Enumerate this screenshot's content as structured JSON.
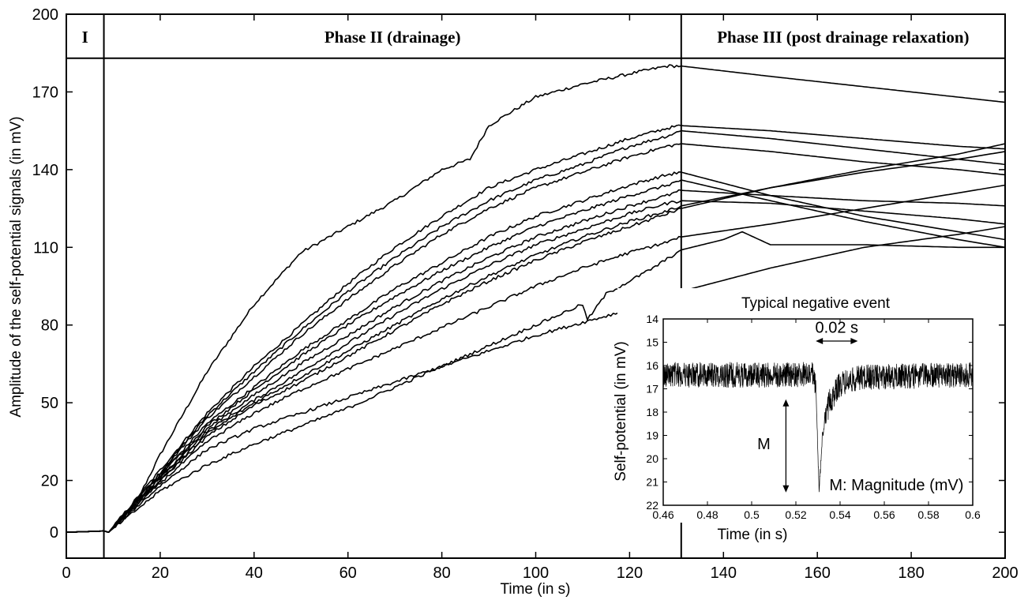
{
  "chart_data": [
    {
      "type": "line",
      "title": "",
      "xlabel": "Time (in s)",
      "ylabel": "Amplitude of the self-potential signals (in mV)",
      "xlim": [
        0,
        200
      ],
      "ylim": [
        -10,
        200
      ],
      "xticks": [
        0,
        20,
        40,
        60,
        80,
        100,
        120,
        140,
        160,
        180,
        200
      ],
      "yticks": [
        0,
        20,
        50,
        80,
        110,
        140,
        170,
        200
      ],
      "grid": false,
      "legend": "none",
      "phases": [
        {
          "label": "I",
          "start": 0,
          "end": 8
        },
        {
          "label": "Phase II (drainage)",
          "start": 8,
          "end": 131
        },
        {
          "label": "Phase III (post drainage relaxation)",
          "start": 131,
          "end": 200
        }
      ],
      "phase_line_values": {
        "x_boundaries": [
          8,
          131
        ],
        "y_band": 183
      },
      "series": [
        {
          "x": [
            0,
            8,
            9,
            15,
            20,
            30,
            40,
            50,
            60,
            70,
            80,
            86,
            90,
            100,
            110,
            120,
            128,
            131,
            150,
            170,
            190,
            200
          ],
          "values": [
            0,
            0.5,
            0,
            12,
            30,
            62,
            88,
            108,
            118,
            128,
            140,
            144,
            157,
            168,
            173,
            177,
            180,
            180,
            176,
            172,
            168,
            166
          ]
        },
        {
          "x": [
            0,
            8,
            9,
            20,
            30,
            40,
            50,
            60,
            70,
            80,
            90,
            100,
            110,
            120,
            128,
            131,
            150,
            170,
            190,
            200
          ],
          "values": [
            0,
            0.5,
            0,
            24,
            46,
            64,
            80,
            96,
            110,
            122,
            133,
            140,
            146,
            152,
            156,
            157,
            155,
            152,
            149,
            148
          ]
        },
        {
          "x": [
            0,
            8,
            9,
            20,
            30,
            40,
            50,
            60,
            70,
            80,
            90,
            100,
            110,
            120,
            128,
            131,
            150,
            170,
            190,
            200
          ],
          "values": [
            0,
            0.5,
            0,
            23,
            45,
            62,
            78,
            93,
            106,
            118,
            128,
            136,
            142,
            149,
            153,
            155,
            152,
            148,
            144,
            142
          ]
        },
        {
          "x": [
            0,
            8,
            9,
            20,
            30,
            40,
            50,
            60,
            70,
            80,
            90,
            100,
            110,
            120,
            128,
            131,
            150,
            170,
            190,
            200
          ],
          "values": [
            0,
            0.5,
            0,
            23,
            44,
            60,
            76,
            90,
            103,
            115,
            125,
            133,
            139,
            145,
            149,
            150,
            147,
            143,
            140,
            138
          ]
        },
        {
          "x": [
            0,
            8,
            9,
            20,
            30,
            40,
            50,
            60,
            70,
            80,
            90,
            100,
            110,
            120,
            128,
            131,
            150,
            170,
            190,
            200
          ],
          "values": [
            0,
            0.5,
            0,
            22,
            42,
            56,
            70,
            82,
            94,
            104,
            114,
            122,
            128,
            134,
            138,
            139,
            130,
            122,
            116,
            113
          ]
        },
        {
          "x": [
            0,
            8,
            9,
            20,
            30,
            40,
            50,
            60,
            70,
            80,
            90,
            100,
            110,
            120,
            128,
            131,
            150,
            170,
            190,
            200
          ],
          "values": [
            0,
            0.5,
            0,
            22,
            41,
            55,
            68,
            80,
            91,
            101,
            110,
            118,
            124,
            130,
            134,
            136,
            128,
            120,
            113,
            110
          ]
        },
        {
          "x": [
            0,
            8,
            9,
            20,
            30,
            40,
            50,
            60,
            70,
            80,
            90,
            100,
            110,
            120,
            128,
            131,
            150,
            170,
            190,
            200
          ],
          "values": [
            0,
            0.5,
            0,
            21,
            40,
            53,
            65,
            76,
            87,
            97,
            106,
            114,
            120,
            126,
            130,
            132,
            130,
            128,
            127,
            126
          ]
        },
        {
          "x": [
            0,
            8,
            9,
            20,
            30,
            40,
            50,
            60,
            70,
            80,
            90,
            100,
            110,
            120,
            128,
            131,
            150,
            170,
            190,
            200
          ],
          "values": [
            0,
            0.5,
            0,
            21,
            39,
            51,
            62,
            73,
            84,
            94,
            103,
            111,
            117,
            123,
            127,
            128,
            127,
            124,
            121,
            119
          ]
        },
        {
          "x": [
            0,
            8,
            9,
            20,
            30,
            40,
            50,
            60,
            70,
            80,
            90,
            100,
            110,
            120,
            128,
            131,
            150,
            170,
            190,
            200
          ],
          "values": [
            0,
            0.5,
            0,
            20,
            38,
            50,
            60,
            70,
            80,
            90,
            99,
            107,
            114,
            120,
            124,
            126,
            133,
            140,
            146,
            150
          ]
        },
        {
          "x": [
            0,
            8,
            9,
            20,
            30,
            40,
            50,
            60,
            70,
            80,
            90,
            100,
            110,
            120,
            128,
            131,
            150,
            170,
            190,
            200
          ],
          "values": [
            0,
            0.5,
            0,
            20,
            37,
            49,
            58,
            68,
            78,
            88,
            97,
            105,
            112,
            118,
            123,
            125,
            133,
            139,
            144,
            147
          ]
        },
        {
          "x": [
            0,
            8,
            9,
            20,
            30,
            40,
            50,
            60,
            70,
            80,
            90,
            100,
            110,
            120,
            128,
            131,
            150,
            170,
            190,
            200
          ],
          "values": [
            0,
            0.5,
            0,
            19,
            35,
            46,
            55,
            63,
            71,
            79,
            87,
            95,
            102,
            108,
            112,
            114,
            119,
            125,
            131,
            134
          ]
        },
        {
          "x": [
            0,
            8,
            9,
            20,
            30,
            40,
            50,
            60,
            70,
            80,
            90,
            100,
            110,
            120,
            128,
            131,
            150,
            170,
            190,
            200
          ],
          "values": [
            0,
            0.5,
            0,
            18,
            32,
            40,
            46,
            52,
            58,
            64,
            70,
            76,
            81,
            86,
            90,
            93,
            102,
            110,
            115,
            118
          ]
        },
        {
          "x": [
            0,
            8,
            9,
            20,
            30,
            40,
            50,
            60,
            70,
            80,
            90,
            100,
            110,
            111,
            115,
            120,
            125,
            131,
            140,
            144,
            150,
            170,
            190,
            200
          ],
          "values": [
            0,
            0.5,
            0,
            16,
            26,
            34,
            41,
            48,
            56,
            64,
            72,
            80,
            88,
            82,
            92,
            97,
            102,
            109,
            113,
            116,
            111,
            111,
            110,
            110
          ]
        }
      ]
    },
    {
      "type": "line",
      "title": "Typical negative event",
      "xlabel": "Time (in s)",
      "ylabel": "Self-potential  (in mV)",
      "xlim": [
        0.46,
        0.6
      ],
      "ylim": [
        22,
        14
      ],
      "xticks": [
        0.46,
        0.48,
        0.5,
        0.52,
        0.54,
        0.56,
        0.58,
        0.6
      ],
      "xtick_labels": [
        "0.46",
        "0.48",
        "0.5",
        "0.52",
        "0.54",
        "0.56",
        "0.58",
        "0.6"
      ],
      "yticks": [
        14,
        15,
        16,
        17,
        18,
        19,
        20,
        21,
        22
      ],
      "inverted_y": true,
      "grid": false,
      "legend": "none",
      "annotations": {
        "duration": "0.02 s",
        "magnitude_symbol": "M",
        "magnitude_legend": "M: Magnitude (mV)"
      },
      "series": [
        {
          "x": [
            0.46,
            0.5,
            0.528,
            0.529,
            0.5305,
            0.531,
            0.532,
            0.535,
            0.54,
            0.55,
            0.6
          ],
          "values": [
            16.4,
            16.4,
            16.4,
            16.9,
            21.4,
            20.6,
            19.0,
            17.6,
            16.8,
            16.5,
            16.4
          ]
        }
      ]
    }
  ],
  "phase_labels": [
    "I",
    "Phase II (drainage)",
    "Phase III (post drainage relaxation)"
  ],
  "axis": {
    "xlabel": "Time (in s)",
    "ylabel": "Amplitude of the self-potential signals (in mV)",
    "xtick_labels": [
      "0",
      "20",
      "40",
      "60",
      "80",
      "100",
      "120",
      "140",
      "160",
      "180",
      "200"
    ],
    "ytick_labels": [
      "0",
      "20",
      "50",
      "80",
      "110",
      "140",
      "170",
      "200"
    ]
  },
  "inset": {
    "title": "Typical negative event",
    "xlabel": "Time (in s)",
    "ylabel": "Self-potential  (in mV)",
    "duration_label": "0.02 s",
    "magnitude_symbol": "M",
    "magnitude_legend": "M: Magnitude (mV)",
    "xtick_labels": [
      "0.46",
      "0.48",
      "0.5",
      "0.52",
      "0.54",
      "0.56",
      "0.58",
      "0.6"
    ],
    "ytick_labels": [
      "14",
      "15",
      "16",
      "17",
      "18",
      "19",
      "20",
      "21",
      "22"
    ]
  },
  "colors": {
    "line": "#000000",
    "background": "#ffffff"
  }
}
